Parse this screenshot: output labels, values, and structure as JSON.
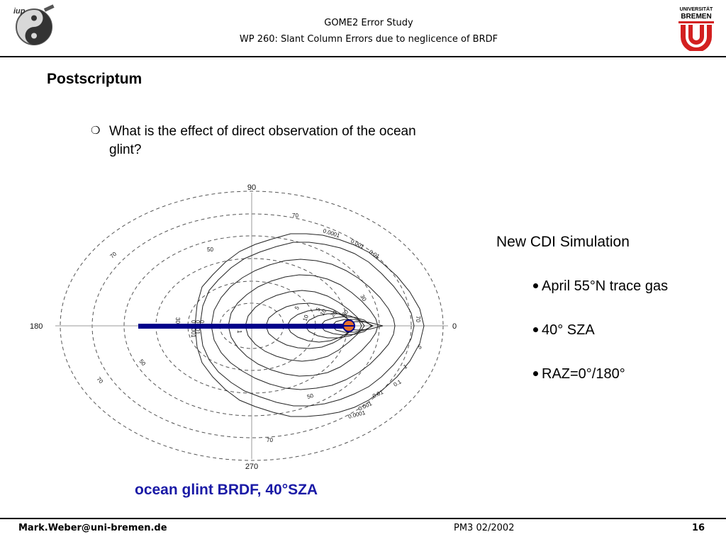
{
  "header": {
    "logo_left_text": "iup",
    "title": "GOME2 Error Study",
    "subtitle": "WP 260: Slant Column Errors due to neglicence of  BRDF",
    "logo_right_text_1": "UNIVERSITÄT",
    "logo_right_text_2": "BREMEN"
  },
  "slide": {
    "heading": "Postscriptum",
    "question": "What is the effect of direct observation of the ocean glint?",
    "side_title": "New CDI Simulation",
    "bullets": [
      "April 55°N trace gas",
      "40° SZA",
      "RAZ=0°/180°"
    ],
    "caption": "ocean glint BRDF, 40°SZA",
    "caption_color": "#1a1aa6"
  },
  "plot": {
    "type": "polar contour",
    "axis_labels": {
      "top": "90",
      "left": "180",
      "right": "0",
      "bottom": "270"
    },
    "zenith_circle_labels": [
      "70",
      "70",
      "50",
      "50",
      "70",
      "70"
    ],
    "contour_labels": [
      "0.0001",
      "0.001",
      "0.01",
      "30",
      "5",
      "10",
      "20",
      "30",
      "5",
      "10",
      "70",
      "5",
      "1",
      "0.1",
      "0.01",
      "0.001",
      "0.0001",
      "50",
      "1",
      "0.1",
      "0.001",
      "0.0001",
      "30"
    ],
    "line_color": "#00008b",
    "sun_color": "#e8702a"
  },
  "footer": {
    "email": "Mark.Weber@uni-bremen.de",
    "date": "PM3 02/2002",
    "page": "16"
  }
}
